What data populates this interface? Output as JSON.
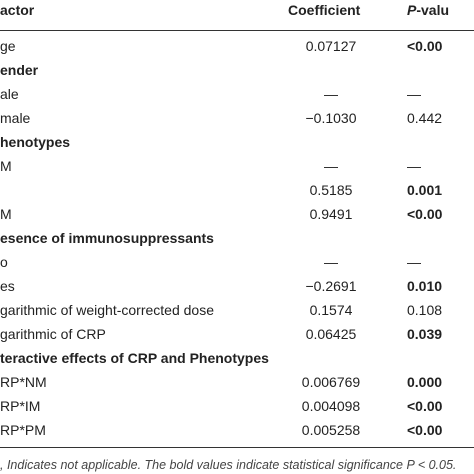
{
  "header": {
    "factor": "actor",
    "coefficient": "Coefficient",
    "p_italic": "P",
    "p_rest": "-valu"
  },
  "rows": [
    {
      "factor": "ge",
      "coefficient": "0.07127",
      "p_value": "<0.00",
      "p_bold": true
    },
    {
      "section": "ender"
    },
    {
      "factor": "ale",
      "coefficient": "—",
      "p_value": "—"
    },
    {
      "factor": "male",
      "coefficient": "−0.1030",
      "p_value": "0.442"
    },
    {
      "section": "henotypes"
    },
    {
      "factor": "M",
      "coefficient": "—",
      "p_value": "—"
    },
    {
      "factor": "",
      "coefficient": "0.5185",
      "p_value": "0.001",
      "p_bold": true
    },
    {
      "factor": "M",
      "coefficient": "0.9491",
      "p_value": "<0.00",
      "p_bold": true
    },
    {
      "section": "esence of immunosuppressants"
    },
    {
      "factor": "o",
      "coefficient": "—",
      "p_value": "—"
    },
    {
      "factor": "es",
      "coefficient": "−0.2691",
      "p_value": "0.010",
      "p_bold": true
    },
    {
      "factor": "garithmic of weight-corrected dose",
      "coefficient": "0.1574",
      "p_value": "0.108"
    },
    {
      "factor": "garithmic of CRP",
      "coefficient": "0.06425",
      "p_value": "0.039",
      "p_bold": true
    },
    {
      "section": "teractive effects of CRP and Phenotypes"
    },
    {
      "factor": "RP*NM",
      "coefficient": "0.006769",
      "p_value": "0.000",
      "p_bold": true
    },
    {
      "factor": "RP*IM",
      "coefficient": "0.004098",
      "p_value": "<0.00",
      "p_bold": true
    },
    {
      "factor": "RP*PM",
      "coefficient": "0.005258",
      "p_value": "<0.00",
      "p_bold": true
    }
  ],
  "footnote": ", Indicates not applicable. The bold values indicate statistical significance P < 0.05."
}
